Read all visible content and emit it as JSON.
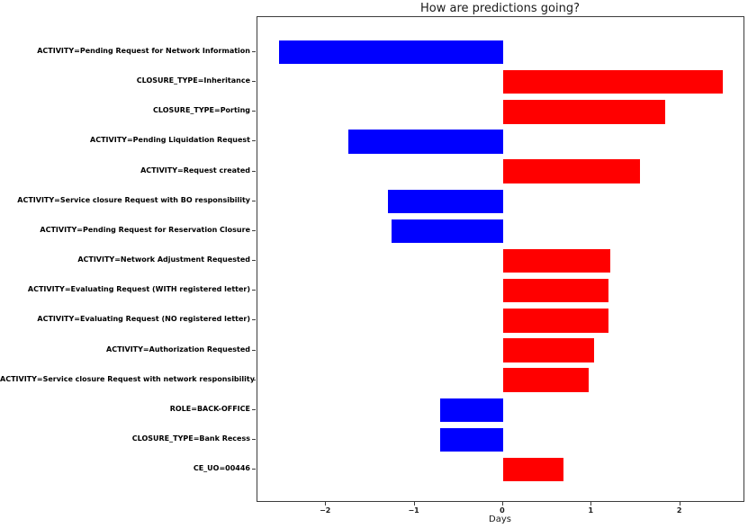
{
  "title": "How are predictions going?",
  "chart_data": {
    "type": "bar",
    "orientation": "horizontal",
    "title": "How are predictions going?",
    "xlabel": "Days",
    "ylabel": "",
    "grid": false,
    "legend": null,
    "xlim": [
      -2.78,
      2.73
    ],
    "xticks": [
      -2,
      -1,
      0,
      1,
      2
    ],
    "bar_colors": {
      "positive": "#ff0000",
      "negative": "#0000ff"
    },
    "categories": [
      "ACTIVITY=Pending Request for Network Information",
      "CLOSURE_TYPE=Inheritance",
      "CLOSURE_TYPE=Porting",
      "ACTIVITY=Pending Liquidation Request",
      "ACTIVITY=Request created",
      "ACTIVITY=Service closure Request with BO responsibility",
      "ACTIVITY=Pending Request for Reservation Closure",
      "ACTIVITY=Network Adjustment Requested",
      "ACTIVITY=Evaluating Request (WITH registered letter)",
      "ACTIVITY=Evaluating Request (NO registered letter)",
      "ACTIVITY=Authorization Requested",
      "ACTIVITY=Service closure Request with network responsibility",
      "ROLE=BACK-OFFICE",
      "CLOSURE_TYPE=Bank Recess",
      "CE_UO=00446"
    ],
    "values": [
      -2.53,
      2.48,
      1.83,
      -1.75,
      1.55,
      -1.3,
      -1.26,
      1.21,
      1.19,
      1.19,
      1.03,
      0.97,
      -0.71,
      -0.71,
      0.68
    ]
  }
}
